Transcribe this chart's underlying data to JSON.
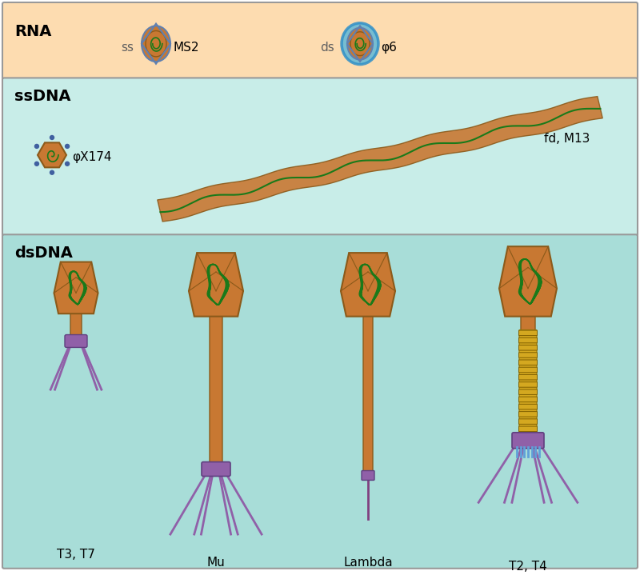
{
  "rna_bg": "#FDDCB0",
  "ssdna_bg": "#C8EDE8",
  "dsdna_bg": "#A8DDD8",
  "border_color": "#888888",
  "title_rna": "RNA",
  "title_ssdna": "ssDNA",
  "title_dsdna": "dsDNA",
  "label_ms2": "MS2",
  "label_phi6": "φ6",
  "label_phiX174": "φX174",
  "label_fdm13": "fd, M13",
  "label_t3t7": "T3, T7",
  "label_mu": "Mu",
  "label_lambda": "Lambda",
  "label_t2t4": "T2, T4",
  "capsid_color": "#C87832",
  "capsid_edge": "#8B5A1A",
  "dna_color": "#1A7A1A",
  "leg_color": "#9060A8",
  "collar_color": "#8060A0",
  "tail_color": "#C87832",
  "sheath_color": "#D4A820",
  "baseplate_color": "#9060A8",
  "spike_color": "#60A0D8",
  "phi6_ring_color": "#60B8D8",
  "phiX_dot_color": "#4060A0",
  "ss_label_color": "#606060",
  "title_fontsize": 14,
  "label_fontsize": 12
}
